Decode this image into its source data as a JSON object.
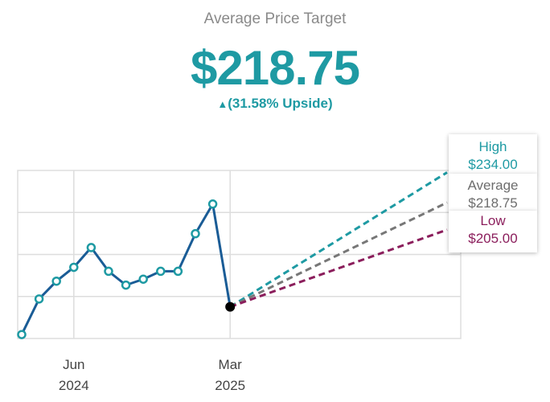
{
  "header": {
    "title": "Average Price Target",
    "value": "$218.75",
    "upside_arrow": "▲",
    "upside_text": "(31.58% Upside)"
  },
  "tooltips": {
    "high": {
      "label": "High",
      "value": "$234.00"
    },
    "average": {
      "label": "Average",
      "value": "$218.75"
    },
    "low": {
      "label": "Low",
      "value": "$205.00"
    }
  },
  "colors": {
    "price_line": "#1a5c96",
    "marker_fill": "#ffffff",
    "marker_stroke": "#1e9aa3",
    "current_point": "#000000",
    "high": "#1e9aa3",
    "average": "#777777",
    "low": "#8b1e5c",
    "grid": "#dddddd"
  },
  "chart_data": {
    "type": "line",
    "x_tick_labels": [
      {
        "month": "Jun",
        "year": "2024"
      },
      {
        "month": "Mar",
        "year": "2025"
      }
    ],
    "grid": true,
    "ylim": [
      150,
      235
    ],
    "series": [
      {
        "x": [
          "2024-03",
          "2024-04",
          "2024-05",
          "2024-06",
          "2024-07",
          "2024-08",
          "2024-09",
          "2024-10",
          "2024-11",
          "2024-12",
          "2025-01",
          "2025-02",
          "2025-03"
        ],
        "values": [
          152,
          170,
          179,
          186,
          196,
          184,
          177,
          180,
          184,
          184,
          203,
          218,
          166
        ]
      },
      {
        "name": "High",
        "x": [
          "2025-03",
          "2026-03"
        ],
        "values": [
          166,
          234
        ]
      },
      {
        "name": "Average",
        "x": [
          "2025-03",
          "2026-03"
        ],
        "values": [
          166,
          218.75
        ]
      },
      {
        "name": "Low",
        "x": [
          "2025-03",
          "2026-03"
        ],
        "values": [
          166,
          205
        ]
      }
    ]
  }
}
